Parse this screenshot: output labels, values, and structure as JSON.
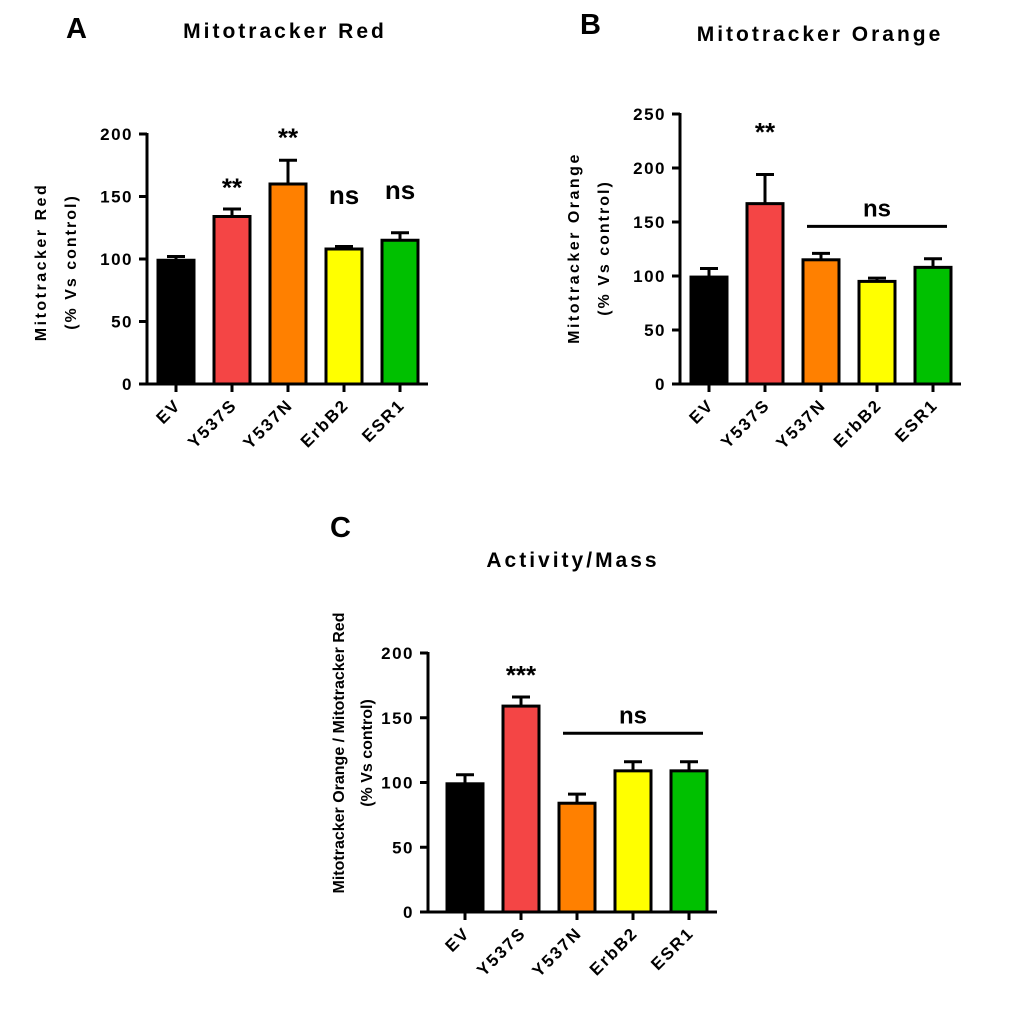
{
  "colors": {
    "EV": "#000000",
    "Y537S": "#f44545",
    "Y537N": "#ff8000",
    "ErbB2": "#ffff00",
    "ESR1": "#00c000",
    "axis": "#000000"
  },
  "chart_data": [
    {
      "panel": "A",
      "type": "bar",
      "title": "Mitotracker Red",
      "xlabel": "",
      "ylabel_lines": [
        "Mitotracker Red",
        "(% Vs control)"
      ],
      "categories": [
        "EV",
        "Y537S",
        "Y537N",
        "ErbB2",
        "ESR1"
      ],
      "values": [
        99,
        134,
        160,
        108,
        115
      ],
      "errors": [
        3,
        6,
        19,
        2,
        6
      ],
      "ylim": [
        0,
        200
      ],
      "yticks": [
        0,
        50,
        100,
        150,
        200
      ],
      "grid": false,
      "annotations": [
        {
          "text": "**",
          "category": "Y537S",
          "y": 150
        },
        {
          "text": "**",
          "category": "Y537N",
          "y": 190
        },
        {
          "text": "ns",
          "category": "ErbB2",
          "y": 144
        },
        {
          "text": "ns",
          "category": "ESR1",
          "y": 148
        }
      ]
    },
    {
      "panel": "B",
      "type": "bar",
      "title": "Mitotracker Orange",
      "xlabel": "",
      "ylabel_lines": [
        "Mitotracker Orange",
        "(% Vs control)"
      ],
      "categories": [
        "EV",
        "Y537S",
        "Y537N",
        "ErbB2",
        "ESR1"
      ],
      "values": [
        99,
        167,
        115,
        95,
        108
      ],
      "errors": [
        8,
        27,
        6,
        3,
        8
      ],
      "ylim": [
        0,
        250
      ],
      "yticks": [
        0,
        50,
        100,
        150,
        200,
        250
      ],
      "grid": false,
      "annotations": [
        {
          "text": "**",
          "category": "Y537S",
          "y": 225
        }
      ],
      "brackets": [
        {
          "text": "ns",
          "from": "Y537N",
          "to": "ESR1",
          "y": 146
        }
      ]
    },
    {
      "panel": "C",
      "type": "bar",
      "title": "Activity/Mass",
      "xlabel": "",
      "ylabel_lines": [
        "Mitotracker Orange / Mitotracker Red",
        "(% Vs control)"
      ],
      "categories": [
        "EV",
        "Y537S",
        "Y537N",
        "ErbB2",
        "ESR1"
      ],
      "values": [
        99,
        159,
        84,
        109,
        109
      ],
      "errors": [
        7,
        7,
        7,
        7,
        7
      ],
      "ylim": [
        0,
        200
      ],
      "yticks": [
        0,
        50,
        100,
        150,
        200
      ],
      "grid": false,
      "annotations": [
        {
          "text": "***",
          "category": "Y537S",
          "y": 176
        }
      ],
      "brackets": [
        {
          "text": "ns",
          "from": "Y537N",
          "to": "ESR1",
          "y": 138
        }
      ]
    }
  ]
}
